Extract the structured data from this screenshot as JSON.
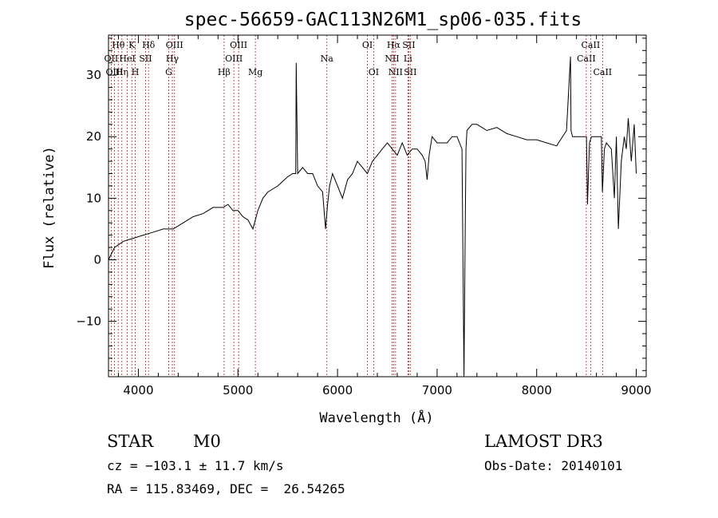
{
  "chart_data": {
    "type": "line",
    "title": "spec-56659-GAC113N26M1_sp06-035.fits",
    "xlabel": "Wavelength (Å)",
    "ylabel": "Flux (relative)",
    "xlim": [
      3700,
      9100
    ],
    "ylim": [
      -19,
      36.5
    ],
    "xticks": [
      4000,
      5000,
      6000,
      7000,
      8000,
      9000
    ],
    "yticks": [
      -10,
      0,
      10,
      20,
      30
    ],
    "ytick_labels": [
      "−10",
      "0",
      "10",
      "20",
      "30"
    ],
    "grid": false,
    "series": [
      {
        "name": "spectrum",
        "x": [
          3700,
          3760,
          3850,
          3950,
          4050,
          4150,
          4250,
          4350,
          4450,
          4550,
          4650,
          4750,
          4850,
          4900,
          4950,
          5000,
          5050,
          5100,
          5150,
          5200,
          5250,
          5300,
          5400,
          5500,
          5550,
          5580,
          5585,
          5600,
          5650,
          5700,
          5750,
          5800,
          5850,
          5880,
          5900,
          5920,
          5950,
          6000,
          6050,
          6100,
          6150,
          6200,
          6250,
          6300,
          6350,
          6400,
          6450,
          6500,
          6550,
          6600,
          6650,
          6700,
          6750,
          6800,
          6850,
          6880,
          6900,
          6920,
          6950,
          7000,
          7050,
          7100,
          7150,
          7200,
          7250,
          7270,
          7280,
          7290,
          7300,
          7350,
          7400,
          7500,
          7600,
          7700,
          7800,
          7900,
          8000,
          8100,
          8200,
          8300,
          8340,
          8345,
          8360,
          8400,
          8450,
          8500,
          8510,
          8530,
          8550,
          8600,
          8650,
          8660,
          8680,
          8700,
          8750,
          8780,
          8800,
          8820,
          8850,
          8880,
          8900,
          8920,
          8950,
          8980,
          9000
        ],
        "y": [
          0,
          2,
          3,
          3.5,
          4,
          4.5,
          5,
          5,
          6,
          7,
          7.5,
          8.5,
          8.5,
          9,
          8,
          8,
          7,
          6.5,
          5,
          8,
          10,
          11,
          12,
          13.5,
          14,
          14,
          32,
          14,
          15,
          14,
          14,
          12,
          11,
          5,
          9,
          12,
          14,
          12,
          10,
          13,
          14,
          16,
          15,
          14,
          16,
          17,
          18,
          19,
          18,
          17,
          19,
          17,
          18,
          18,
          17,
          16,
          13,
          17,
          20,
          19,
          19,
          19,
          20,
          20,
          18,
          -19,
          0,
          18,
          21,
          22,
          22,
          21,
          21.5,
          20.5,
          20,
          19.5,
          19.5,
          19,
          18.5,
          21,
          33,
          21,
          20,
          20,
          20,
          20,
          9,
          19,
          20,
          20,
          20,
          11,
          18,
          19,
          18,
          10,
          20,
          5,
          16,
          20,
          18,
          23,
          16,
          22,
          14
        ]
      }
    ],
    "markers": [
      {
        "name": "Hθ",
        "x": 3798,
        "row": 0
      },
      {
        "name": "OII",
        "x": 3727,
        "row": 1
      },
      {
        "name": "OIII",
        "x": 3760,
        "row": 2
      },
      {
        "name": "Hη",
        "x": 3835,
        "row": 2
      },
      {
        "name": "HeI",
        "x": 3889,
        "row": 1
      },
      {
        "name": "K",
        "x": 3934,
        "row": 0
      },
      {
        "name": "H",
        "x": 3969,
        "row": 2
      },
      {
        "name": "SII",
        "x": 4072,
        "row": 1
      },
      {
        "name": "Hδ",
        "x": 4102,
        "row": 0
      },
      {
        "name": "G",
        "x": 4305,
        "row": 2
      },
      {
        "name": "Hγ",
        "x": 4341,
        "row": 1
      },
      {
        "name": "OIII",
        "x": 4363,
        "row": 0
      },
      {
        "name": "Hβ",
        "x": 4861,
        "row": 2
      },
      {
        "name": "OIII",
        "x": 4959,
        "row": 1
      },
      {
        "name": "OIII",
        "x": 5007,
        "row": 0
      },
      {
        "name": "Mg",
        "x": 5175,
        "row": 2
      },
      {
        "name": "Na",
        "x": 5893,
        "row": 1
      },
      {
        "name": "OI",
        "x": 6300,
        "row": 0
      },
      {
        "name": "OI",
        "x": 6363,
        "row": 2
      },
      {
        "name": "NII",
        "x": 6548,
        "row": 1
      },
      {
        "name": "Hα",
        "x": 6563,
        "row": 0
      },
      {
        "name": "NII",
        "x": 6583,
        "row": 2
      },
      {
        "name": "Li",
        "x": 6707,
        "row": 1
      },
      {
        "name": "SII",
        "x": 6716,
        "row": 0
      },
      {
        "name": "SII",
        "x": 6731,
        "row": 2
      },
      {
        "name": "CaII",
        "x": 8498,
        "row": 1
      },
      {
        "name": "CaII",
        "x": 8542,
        "row": 0
      },
      {
        "name": "CaII",
        "x": 8662,
        "row": 2
      }
    ]
  },
  "info": {
    "object_class": "STAR",
    "subclass": "M0",
    "survey": "LAMOST DR3",
    "cz_line": "cz = −103.1 ± 11.7 km/s",
    "obs_date": "Obs-Date: 20140101",
    "coords": "RA = 115.83469, DEC =  26.54265"
  }
}
